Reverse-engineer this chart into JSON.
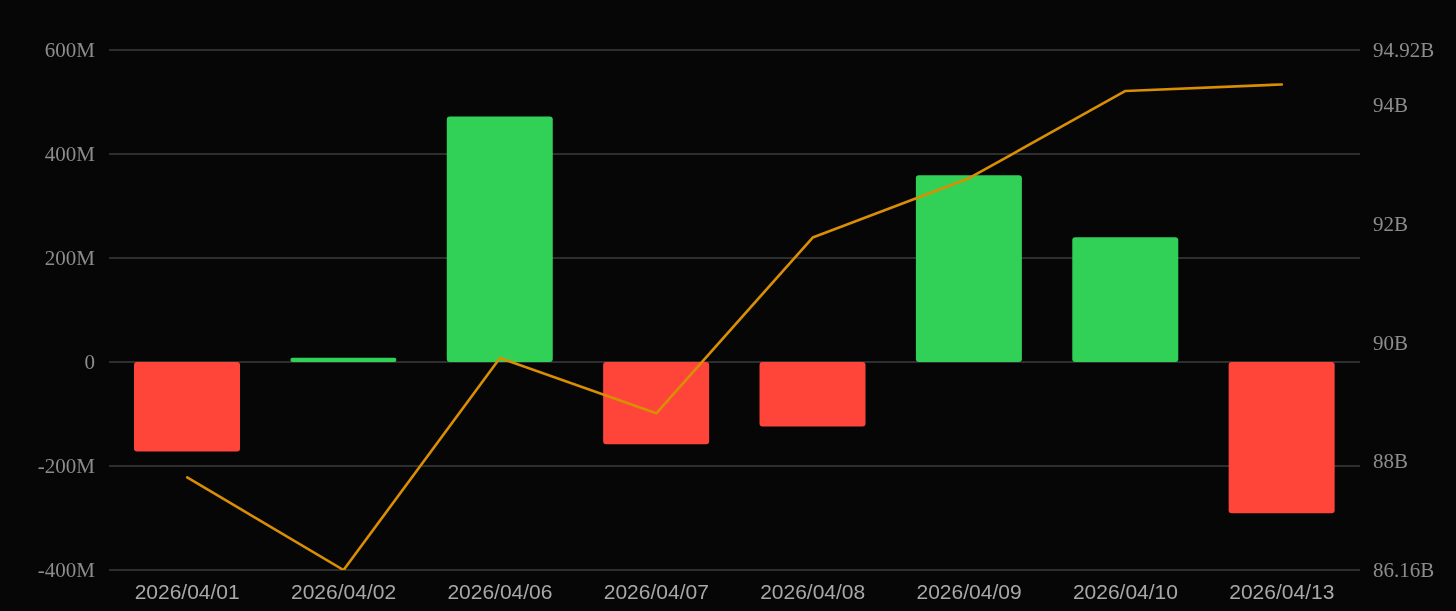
{
  "chart_data": {
    "type": "bar",
    "categories": [
      "2026/04/01",
      "2026/04/02",
      "2026/04/06",
      "2026/04/07",
      "2026/04/08",
      "2026/04/09",
      "2026/04/10",
      "2026/04/13"
    ],
    "series": [
      {
        "colors": [
          "#ff453a",
          "#31d158",
          "#31d158",
          "#ff453a",
          "#ff453a",
          "#31d158",
          "#31d158",
          "#ff453a"
        ],
        "values": [
          -172,
          8,
          472,
          -158,
          -124,
          359,
          240,
          -291
        ]
      },
      {
        "type": "line",
        "axis": "y2",
        "color": "#d98e04",
        "values": [
          87.72,
          86.16,
          89.73,
          88.8,
          91.76,
          92.76,
          94.23,
          94.34
        ]
      }
    ],
    "ylim": [
      -400,
      600
    ],
    "yticks": [
      {
        "value": -400,
        "label": "-400M"
      },
      {
        "value": -200,
        "label": "-200M"
      },
      0,
      {
        "value": 200,
        "label": "200M"
      },
      {
        "value": 400,
        "label": "400M"
      },
      {
        "value": 600,
        "label": "600M"
      }
    ],
    "y2lim": [
      86.16,
      94.92
    ],
    "y2ticks": [
      {
        "value": 86.16,
        "label": "86.16B"
      },
      {
        "value": 88,
        "label": "88B"
      },
      {
        "value": 90,
        "label": "90B"
      },
      {
        "value": 92,
        "label": "92B"
      },
      {
        "value": 94,
        "label": "94B"
      },
      {
        "value": 94.92,
        "label": "94.92B"
      }
    ],
    "grid": "y"
  }
}
